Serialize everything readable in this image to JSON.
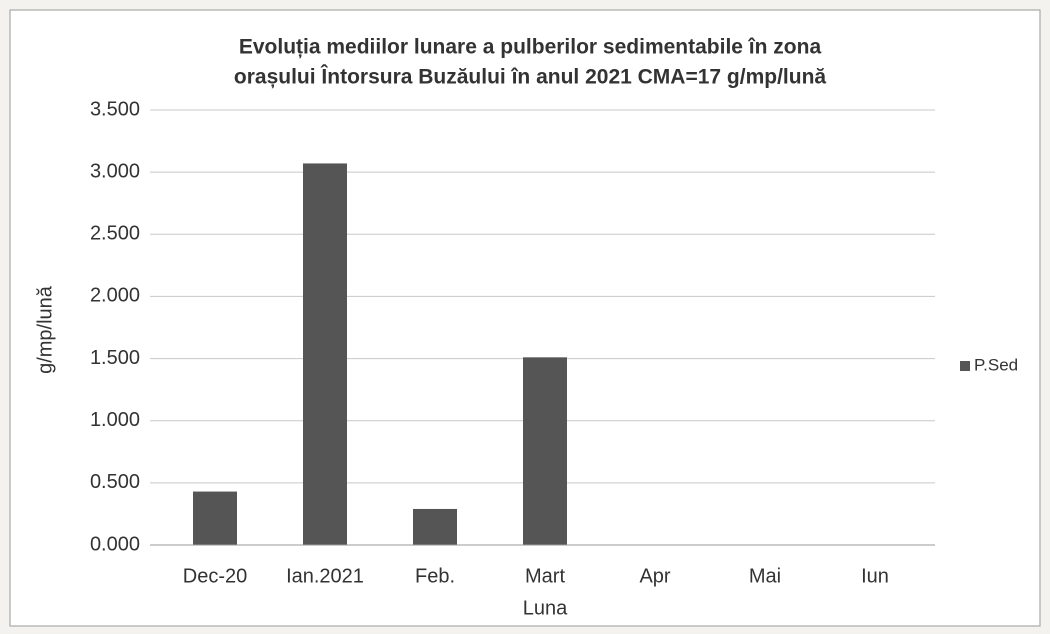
{
  "chart_data": {
    "type": "bar",
    "title": [
      "Evoluția mediilor lunare a pulberilor  sedimentabile în zona",
      "orașului  Întorsura Buzăului în anul 2021  CMA=17 g/mp/lună"
    ],
    "x_label": "Luna",
    "y_label": "g/mp/lună",
    "categories": [
      "Dec-20",
      "Ian.2021",
      "Feb.",
      "Mart",
      "Apr",
      "Mai",
      "Iun"
    ],
    "series": [
      {
        "name": "P.Sed",
        "color": "#555555",
        "values": [
          0.43,
          3.07,
          0.29,
          1.51,
          null,
          null,
          null
        ]
      }
    ],
    "ylim": [
      0,
      3.5
    ],
    "yticks": [
      {
        "value": 0,
        "label": "0.000"
      },
      {
        "value": 0.5,
        "label": "0.500"
      },
      {
        "value": 1,
        "label": "1.000"
      },
      {
        "value": 1.5,
        "label": "1.500"
      },
      {
        "value": 2,
        "label": "2.000"
      },
      {
        "value": 2.5,
        "label": "2.500"
      },
      {
        "value": 3,
        "label": "3.000"
      },
      {
        "value": 3.5,
        "label": "3.500"
      }
    ],
    "grid": true,
    "legend": "right"
  }
}
